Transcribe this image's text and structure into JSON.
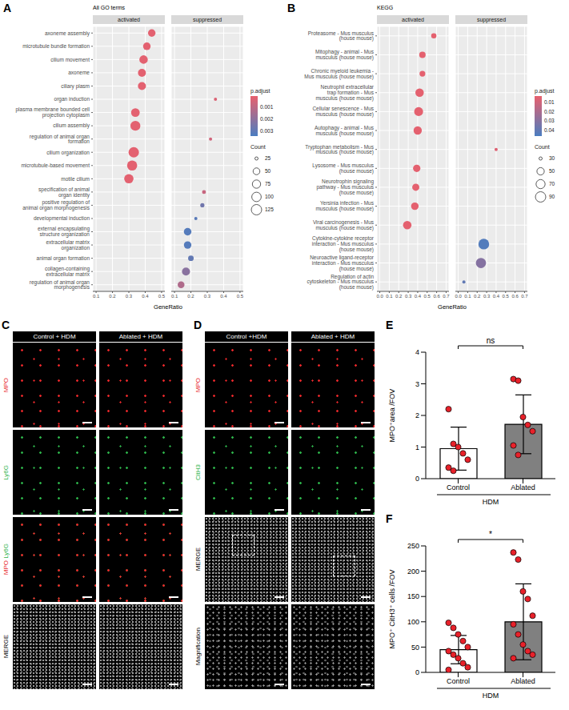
{
  "chart_data": [
    {
      "panel": "A",
      "type": "scatter",
      "title": "All GO terms",
      "facets": [
        "activated",
        "suppressed"
      ],
      "x_label": "GeneRatio",
      "xlim": [
        0.08,
        0.52
      ],
      "xticks": [
        0.1,
        0.2,
        0.3,
        0.4,
        0.5
      ],
      "grid": true,
      "terms": [
        {
          "term": "axoneme assembly",
          "facet": "activated",
          "x": 0.44,
          "count": 60,
          "p_adjust": 0.0002
        },
        {
          "term": "microtubule bundle formation",
          "facet": "activated",
          "x": 0.41,
          "count": 62,
          "p_adjust": 0.0002
        },
        {
          "term": "cilium movement",
          "facet": "activated",
          "x": 0.39,
          "count": 78,
          "p_adjust": 0.0002
        },
        {
          "term": "axoneme",
          "facet": "activated",
          "x": 0.38,
          "count": 68,
          "p_adjust": 0.0002
        },
        {
          "term": "ciliary plasm",
          "facet": "activated",
          "x": 0.38,
          "count": 70,
          "p_adjust": 0.0002
        },
        {
          "term": "organ induction",
          "facet": "suppressed",
          "x": 0.35,
          "count": 25,
          "p_adjust": 0.0004
        },
        {
          "term": "plasma membrane bounded cell projection cytoplasm",
          "facet": "activated",
          "x": 0.34,
          "count": 82,
          "p_adjust": 0.0002
        },
        {
          "term": "cilium assembly",
          "facet": "activated",
          "x": 0.34,
          "count": 112,
          "p_adjust": 0.0002
        },
        {
          "term": "regulation of animal organ formation",
          "facet": "suppressed",
          "x": 0.32,
          "count": 25,
          "p_adjust": 0.0006
        },
        {
          "term": "cilium organization",
          "facet": "activated",
          "x": 0.33,
          "count": 125,
          "p_adjust": 0.0002
        },
        {
          "term": "microtubule-based movement",
          "facet": "activated",
          "x": 0.32,
          "count": 118,
          "p_adjust": 0.0002
        },
        {
          "term": "motile cilium",
          "facet": "activated",
          "x": 0.3,
          "count": 96,
          "p_adjust": 0.0002
        },
        {
          "term": "specification of animal organ identity",
          "facet": "suppressed",
          "x": 0.28,
          "count": 26,
          "p_adjust": 0.0008
        },
        {
          "term": "positive regulation of animal organ morphogenesis",
          "facet": "suppressed",
          "x": 0.27,
          "count": 27,
          "p_adjust": 0.0026
        },
        {
          "term": "developmental induction",
          "facet": "suppressed",
          "x": 0.23,
          "count": 25,
          "p_adjust": 0.0031
        },
        {
          "term": "external encapsulating structure organization",
          "facet": "suppressed",
          "x": 0.18,
          "count": 62,
          "p_adjust": 0.0032
        },
        {
          "term": "extracellular matrix organization",
          "facet": "suppressed",
          "x": 0.18,
          "count": 61,
          "p_adjust": 0.0032
        },
        {
          "term": "animal organ formation",
          "facet": "suppressed",
          "x": 0.2,
          "count": 36,
          "p_adjust": 0.0029
        },
        {
          "term": "collagen-containing extracellular matrix",
          "facet": "suppressed",
          "x": 0.17,
          "count": 70,
          "p_adjust": 0.0021
        },
        {
          "term": "regulation of animal organ morphogenesis",
          "facet": "suppressed",
          "x": 0.14,
          "count": 50,
          "p_adjust": 0.0013
        }
      ],
      "color_legend": {
        "title": "p.adjust",
        "range": [
          0.0001,
          0.0034
        ],
        "ticks": [
          0.001,
          0.002,
          0.003
        ]
      },
      "size_legend": {
        "title": "Count",
        "ticks": [
          25,
          50,
          75,
          100,
          125
        ]
      }
    },
    {
      "panel": "B",
      "type": "scatter",
      "title": "KEGG",
      "facets": [
        "activated",
        "suppressed"
      ],
      "x_label": "GeneRatio",
      "xlim": [
        -0.03,
        0.73
      ],
      "xticks": [
        {
          "value": 0,
          "label": "0.0"
        },
        0.1,
        0.2,
        0.3,
        0.4,
        0.5,
        0.6,
        0.7
      ],
      "grid": true,
      "terms": [
        {
          "term": "Proteasome - Mus musculus (house mouse)",
          "facet": "activated",
          "x": 0.57,
          "count": 35,
          "p_adjust": 0.004
        },
        {
          "term": "Mitophagy - animal - Mus musculus (house mouse)",
          "facet": "activated",
          "x": 0.45,
          "count": 42,
          "p_adjust": 0.004
        },
        {
          "term": "Chronic myeloid leukemia - Mus musculus (house mouse)",
          "facet": "activated",
          "x": 0.45,
          "count": 38,
          "p_adjust": 0.004
        },
        {
          "term": "Neutrophil extracellular trap formation - Mus musculus (house mouse)",
          "facet": "activated",
          "x": 0.42,
          "count": 62,
          "p_adjust": 0.004
        },
        {
          "term": "Cellular senescence - Mus musculus (house mouse)",
          "facet": "activated",
          "x": 0.41,
          "count": 68,
          "p_adjust": 0.004
        },
        {
          "term": "Autophagy - animal - Mus musculus (house mouse)",
          "facet": "activated",
          "x": 0.4,
          "count": 60,
          "p_adjust": 0.004
        },
        {
          "term": "Tryptophan metabolism - Mus musculus (house mouse)",
          "facet": "suppressed",
          "x": 0.4,
          "count": 25,
          "p_adjust": 0.006
        },
        {
          "term": "Lysosome - Mus musculus (house mouse)",
          "facet": "activated",
          "x": 0.39,
          "count": 50,
          "p_adjust": 0.004
        },
        {
          "term": "Neurotrophin signaling pathway - Mus musculus (house mouse)",
          "facet": "activated",
          "x": 0.38,
          "count": 48,
          "p_adjust": 0.004
        },
        {
          "term": "Yersinia infection - Mus musculus (house mouse)",
          "facet": "activated",
          "x": 0.37,
          "count": 52,
          "p_adjust": 0.004
        },
        {
          "term": "Viral carcinogenesis - Mus musculus (house mouse)",
          "facet": "activated",
          "x": 0.29,
          "count": 62,
          "p_adjust": 0.004
        },
        {
          "term": "Cytokine-cytokine receptor interaction - Mus musculus (house mouse)",
          "facet": "suppressed",
          "x": 0.27,
          "count": 96,
          "p_adjust": 0.044
        },
        {
          "term": "Neuroactive ligand-receptor interaction - Mus musculus (house mouse)",
          "facet": "suppressed",
          "x": 0.24,
          "count": 86,
          "p_adjust": 0.03
        },
        {
          "term": "Regulation of actin cytoskeleton - Mus musculus (house mouse)",
          "facet": "suppressed",
          "x": 0.06,
          "count": 30,
          "p_adjust": 0.04
        }
      ],
      "color_legend": {
        "title": "p.adjust",
        "range": [
          0.003,
          0.046
        ],
        "ticks": [
          0.01,
          0.02,
          0.03,
          0.04
        ]
      },
      "size_legend": {
        "title": "Count",
        "ticks": [
          30,
          50,
          70,
          90
        ]
      }
    },
    {
      "panel": "E",
      "type": "bar",
      "y_label": "MPO⁺area /FOV",
      "categories": [
        "Control",
        "Ablated"
      ],
      "values": [
        0.95,
        1.72
      ],
      "errors": [
        0.68,
        0.93
      ],
      "points": [
        [
          2.2,
          1.1,
          1.0,
          0.8,
          0.6,
          0.35,
          0.25
        ],
        [
          3.15,
          3.1,
          1.95,
          1.7,
          1.5,
          1.05,
          0.75
        ]
      ],
      "colors": [
        "#ffffff",
        "#808080"
      ],
      "ylim": [
        0,
        4
      ],
      "yticks": [
        0,
        1,
        2,
        3,
        4
      ],
      "grid": false,
      "group_label": "HDM",
      "significance": "ns"
    },
    {
      "panel": "F",
      "type": "bar",
      "y_label": "MPO⁺ CitH3⁺ cells /FOV",
      "categories": [
        "Control",
        "Ablated"
      ],
      "values": [
        45,
        100
      ],
      "errors": [
        28,
        75
      ],
      "points": [
        [
          98,
          88,
          75,
          62,
          50,
          42,
          35,
          28,
          18,
          10,
          5
        ],
        [
          237,
          223,
          160,
          145,
          112,
          95,
          75,
          55,
          42,
          35,
          28
        ]
      ],
      "colors": [
        "#ffffff",
        "#808080"
      ],
      "ylim": [
        0,
        250
      ],
      "yticks": [
        0,
        50,
        100,
        150,
        200,
        250
      ],
      "grid": false,
      "group_label": "HDM",
      "significance": "*"
    }
  ],
  "image_panels": [
    {
      "panel": "C",
      "columns": [
        "Control + HDM",
        "Ablated + HDM"
      ],
      "rows": [
        [
          {
            "text": "MPO",
            "color": "#e8272a"
          }
        ],
        [
          {
            "text": "Ly6G",
            "color": "#2db34a"
          }
        ],
        [
          {
            "text": "MPO",
            "color": "#e8272a"
          },
          {
            "text": "Ly6G",
            "color": "#2db34a"
          }
        ],
        [
          {
            "text": "MERGE",
            "color": "#000000"
          }
        ]
      ]
    },
    {
      "panel": "D",
      "columns": [
        "Control +HDM",
        "Ablated + HDM"
      ],
      "rows": [
        [
          {
            "text": "MPO",
            "color": "#e8272a"
          }
        ],
        [
          {
            "text": "CitH3",
            "color": "#2db34a"
          }
        ],
        [
          {
            "text": "MERGE",
            "color": "#000000"
          }
        ],
        [
          {
            "text": "Magnification",
            "color": "#000000"
          }
        ]
      ]
    }
  ]
}
